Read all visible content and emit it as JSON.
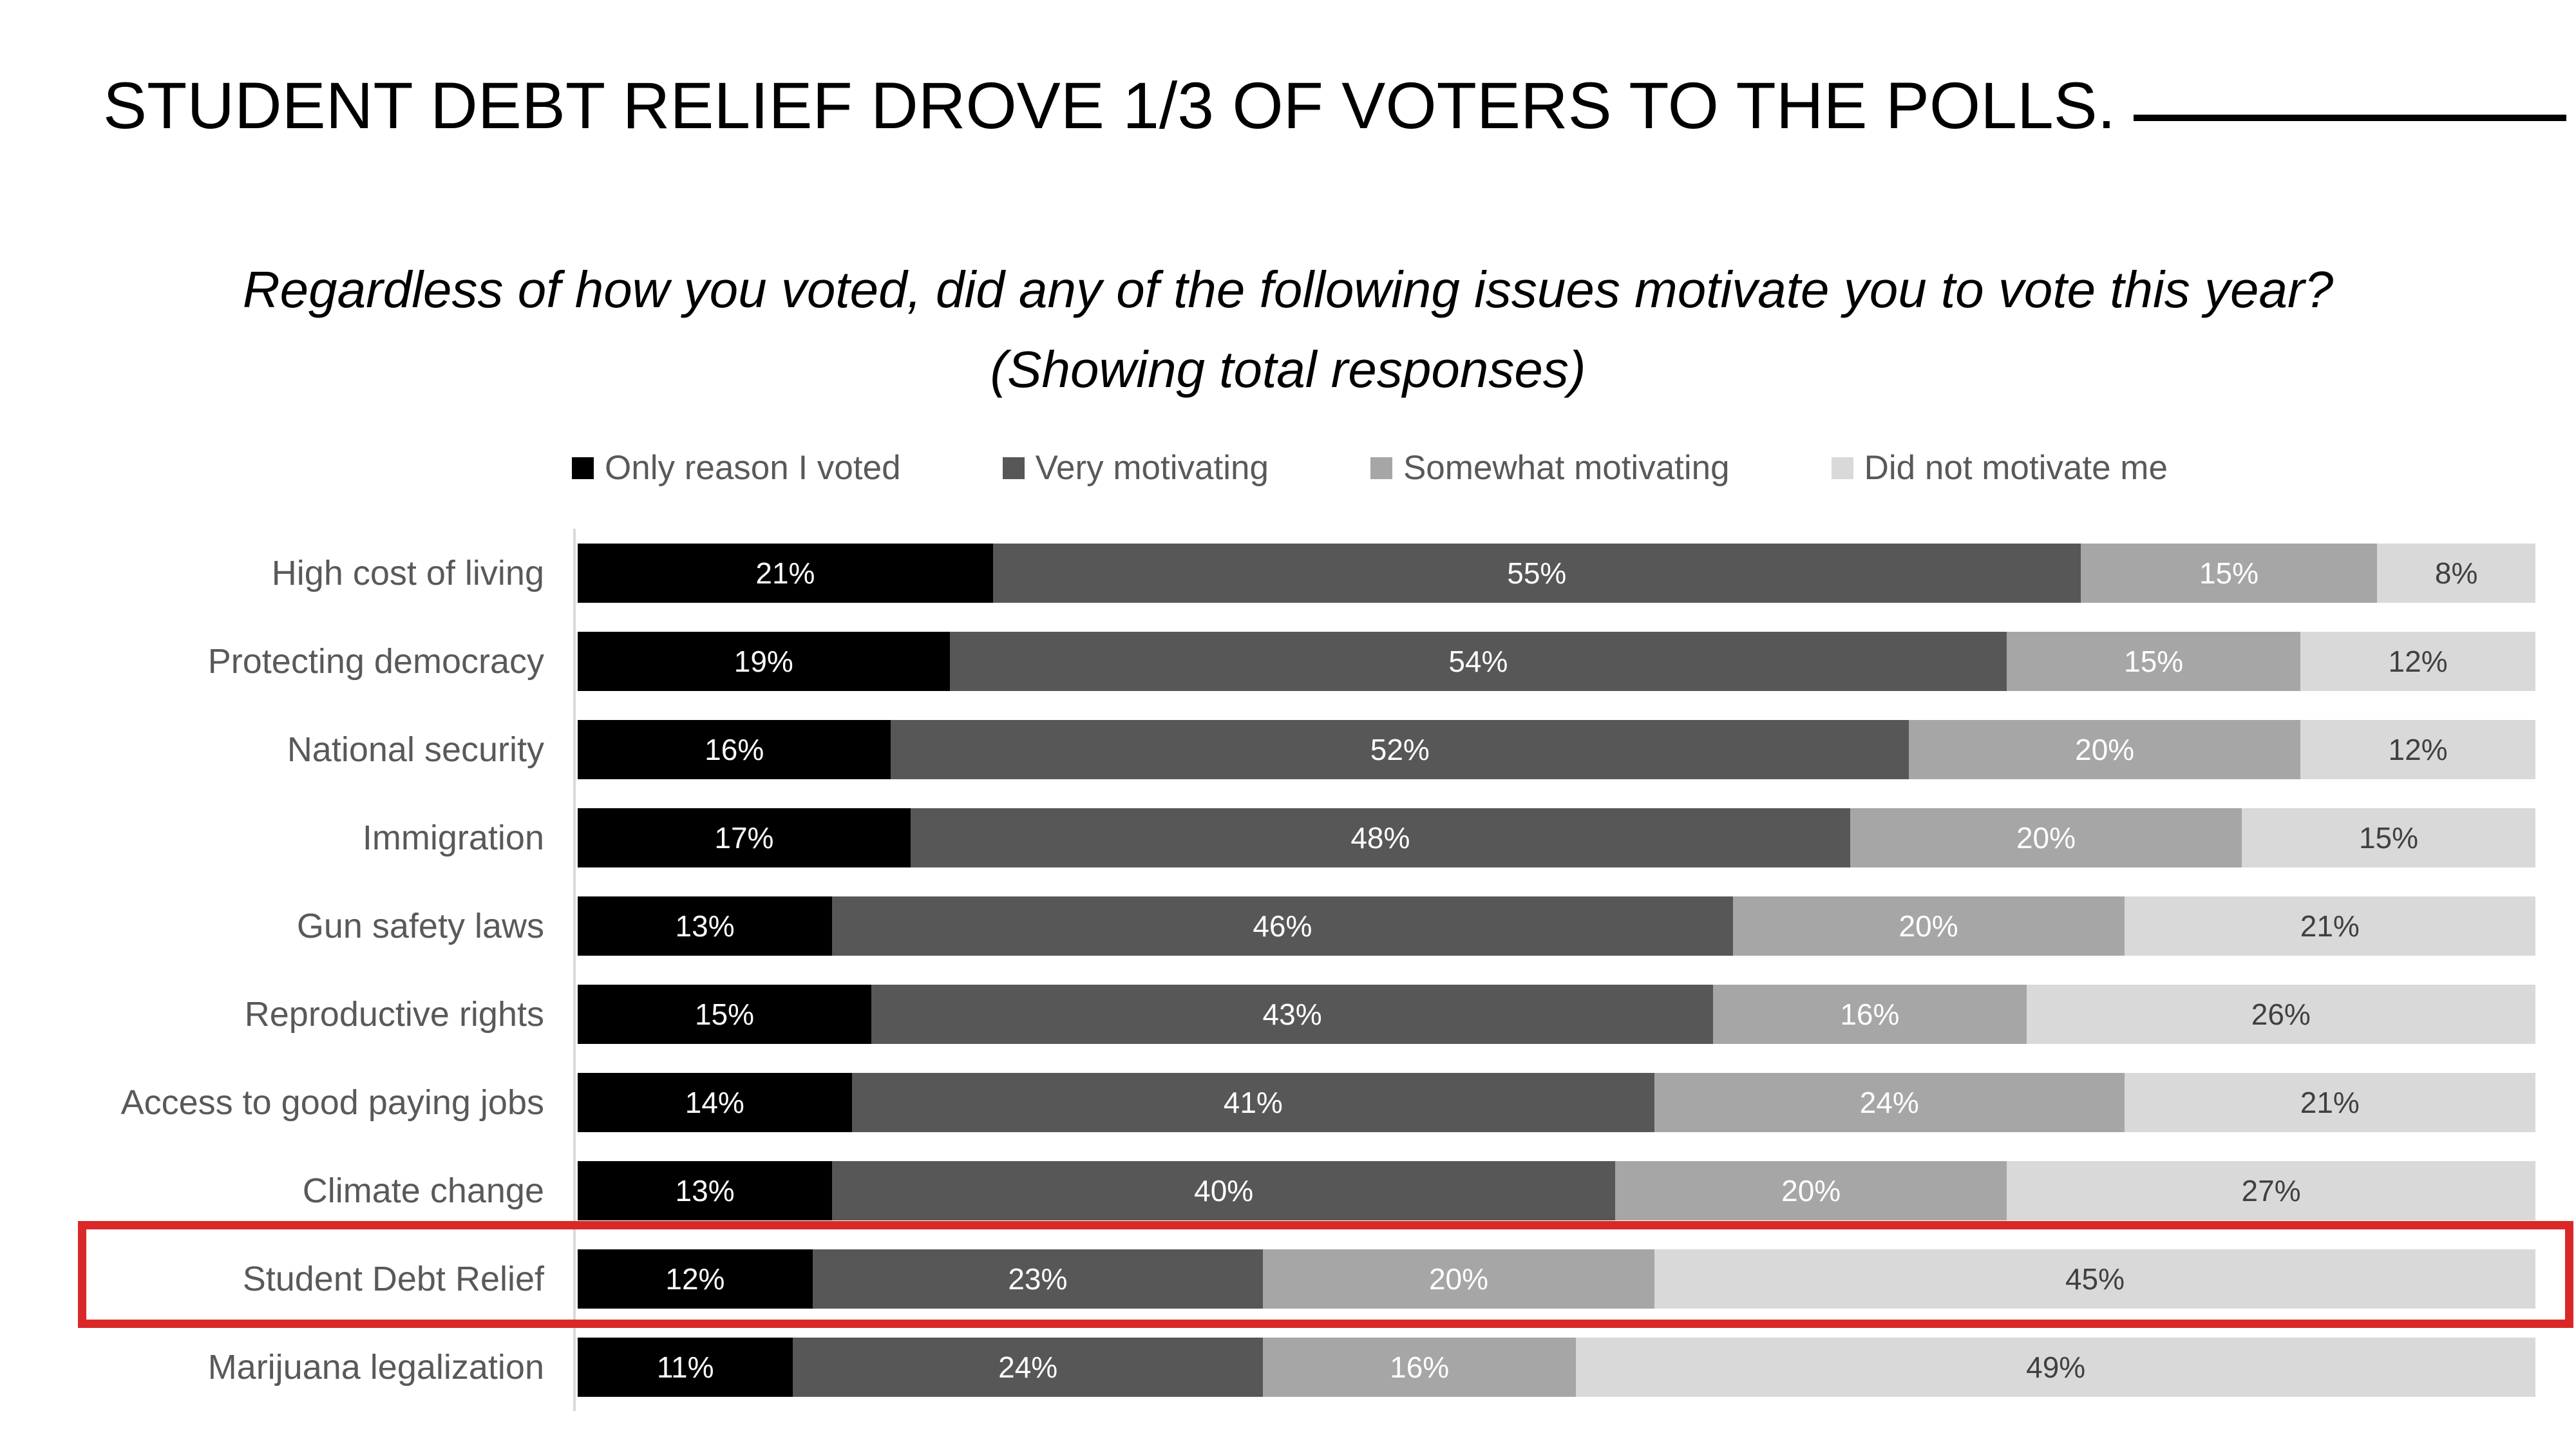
{
  "slide": {
    "title": "STUDENT DEBT RELIEF DROVE 1/3 OF VOTERS TO THE POLLS.",
    "subtitle_question": "Regardless of how you voted, did any of the following issues motivate you to vote this year?",
    "subtitle_note": "(Showing total responses)"
  },
  "colors": {
    "series": [
      "#000000",
      "#575757",
      "#A6A6A6",
      "#D9D9D9"
    ],
    "series_label_text": [
      "#FFFFFF",
      "#FFFFFF",
      "#FFFFFF",
      "#404040"
    ],
    "category_label": "#595959",
    "legend_text": "#595959",
    "highlight_border": "#DA2828",
    "axis_line": "#D9D9D9",
    "title_text": "#000000"
  },
  "chart_data": {
    "type": "bar",
    "subtype": "horizontal_stacked_100pct",
    "title": "STUDENT DEBT RELIEF DROVE 1/3 OF VOTERS TO THE POLLS.",
    "subtitle": "Regardless of how you voted, did any of the following issues motivate you to vote this year? (Showing total responses)",
    "legend_position": "top",
    "grid": false,
    "xlim": [
      0,
      100
    ],
    "value_suffix": "%",
    "categories": [
      "High cost of living",
      "Protecting democracy",
      "National security",
      "Immigration",
      "Gun safety laws",
      "Reproductive rights",
      "Access to good paying jobs",
      "Climate change",
      "Student Debt Relief",
      "Marijuana legalization"
    ],
    "series": [
      {
        "name": "Only reason I voted",
        "color": "#000000",
        "values": [
          21,
          19,
          16,
          17,
          13,
          15,
          14,
          13,
          12,
          11
        ]
      },
      {
        "name": "Very motivating",
        "color": "#575757",
        "values": [
          55,
          54,
          52,
          48,
          46,
          43,
          41,
          40,
          23,
          24
        ]
      },
      {
        "name": "Somewhat motivating",
        "color": "#A6A6A6",
        "values": [
          15,
          15,
          20,
          20,
          20,
          16,
          24,
          20,
          20,
          16
        ]
      },
      {
        "name": "Did not motivate me",
        "color": "#D9D9D9",
        "values": [
          8,
          12,
          12,
          15,
          21,
          26,
          21,
          27,
          45,
          49
        ]
      }
    ],
    "highlighted_category": "Student Debt Relief"
  }
}
